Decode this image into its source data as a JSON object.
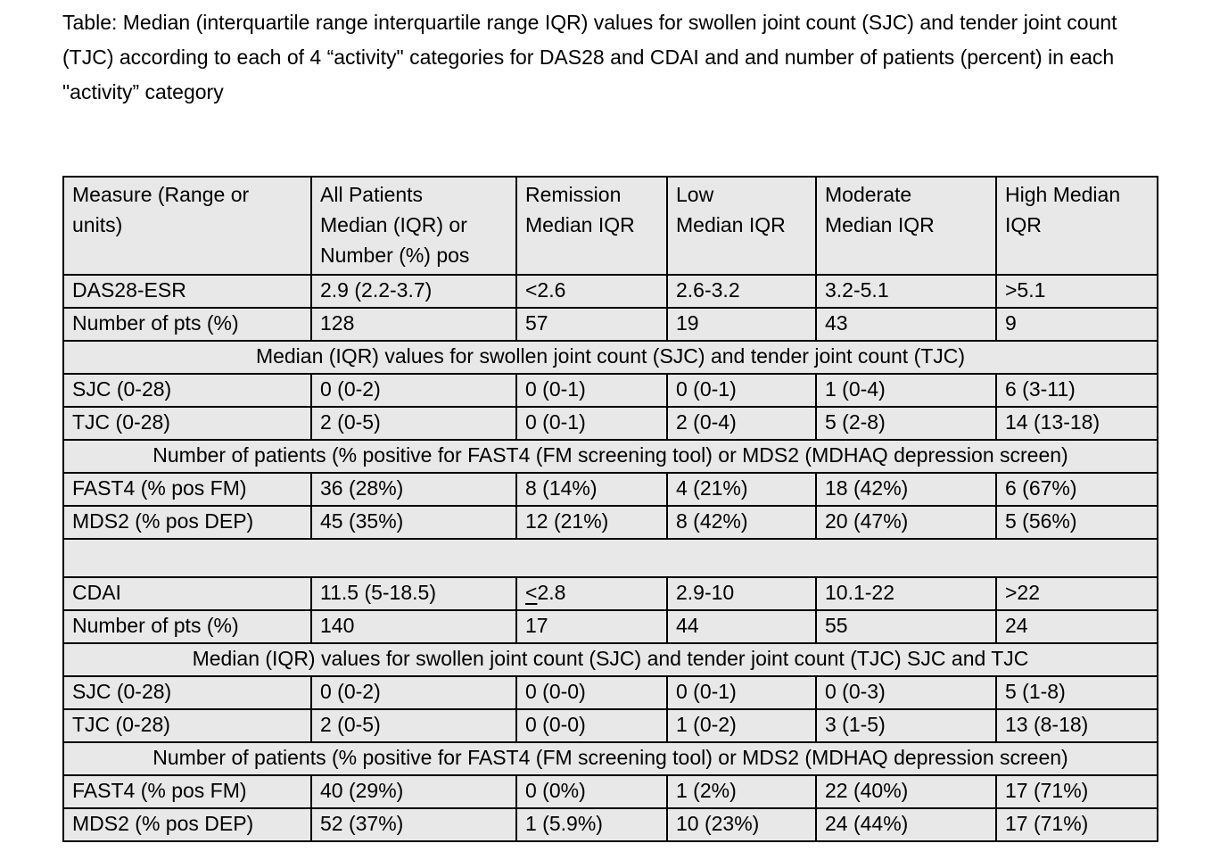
{
  "title": "Table: Median (interquartile range interquartile range IQR) values for swollen joint count (SJC) and tender joint count (TJC) according to each of 4 “activity\" categories for DAS28 and CDAI and and number of patients (percent) in each \"activity” category",
  "colors": {
    "cell_bg": "#e8e8e8",
    "border": "#000000",
    "text": "#000000",
    "page_bg": "#ffffff"
  },
  "table": {
    "columns": [
      "Measure (Range or\nunits)",
      "All Patients\nMedian (IQR) or\nNumber (%) pos",
      "Remission\nMedian IQR",
      "Low\nMedian IQR",
      "Moderate\nMedian IQR",
      "High Median\nIQR"
    ],
    "rows": [
      {
        "type": "data",
        "cells": [
          "DAS28-ESR",
          "2.9 (2.2-3.7)",
          "<2.6",
          "2.6-3.2",
          "3.2-5.1",
          ">5.1"
        ]
      },
      {
        "type": "data",
        "cells": [
          "Number of pts (%)",
          "128",
          "57",
          "19",
          "43",
          "9"
        ]
      },
      {
        "type": "section",
        "text": "Median (IQR) values for swollen joint count (SJC) and tender joint count (TJC)"
      },
      {
        "type": "data",
        "cells": [
          "SJC (0-28)",
          "0 (0-2)",
          "0 (0-1)",
          "0 (0-1)",
          "1 (0-4)",
          "6 (3-11)"
        ]
      },
      {
        "type": "data",
        "cells": [
          "TJC (0-28)",
          "2 (0-5)",
          "0 (0-1)",
          "2 (0-4)",
          "5 (2-8)",
          "14 (13-18)"
        ]
      },
      {
        "type": "section",
        "text": "Number of patients (% positive for FAST4 (FM screening tool) or MDS2 (MDHAQ depression screen)"
      },
      {
        "type": "data",
        "cells": [
          "FAST4 (% pos FM)",
          "36 (28%)",
          "8 (14%)",
          "4 (21%)",
          "18 (42%)",
          "6 (67%)"
        ]
      },
      {
        "type": "data",
        "cells": [
          "MDS2 (% pos DEP)",
          "45 (35%)",
          "12 (21%)",
          "8 (42%)",
          "20 (47%)",
          "5 (56%)"
        ]
      },
      {
        "type": "blank"
      },
      {
        "type": "data",
        "cells": [
          "CDAI",
          "11.5 (5-18.5)",
          {
            "text": "<2.8",
            "underline_chars": 1
          },
          "2.9-10",
          "10.1-22",
          ">22"
        ]
      },
      {
        "type": "data",
        "cells": [
          "Number of pts (%)",
          "140",
          "17",
          "44",
          "55",
          "24"
        ]
      },
      {
        "type": "section",
        "text": "Median (IQR) values for swollen joint count (SJC) and tender joint count (TJC) SJC and TJC"
      },
      {
        "type": "data",
        "cells": [
          "SJC (0-28)",
          "0 (0-2)",
          "0 (0-0)",
          "0 (0-1)",
          "0 (0-3)",
          "5 (1-8)"
        ]
      },
      {
        "type": "data",
        "cells": [
          "TJC (0-28)",
          "2 (0-5)",
          "0 (0-0)",
          "1 (0-2)",
          "3 (1-5)",
          "13 (8-18)"
        ]
      },
      {
        "type": "section",
        "text": "Number of patients (% positive for FAST4 (FM screening tool) or MDS2 (MDHAQ depression screen)"
      },
      {
        "type": "data",
        "cells": [
          "FAST4 (% pos FM)",
          "40 (29%)",
          "0 (0%)",
          "1 (2%)",
          "22 (40%)",
          "17 (71%)"
        ]
      },
      {
        "type": "data",
        "cells": [
          "MDS2 (% pos DEP)",
          "52 (37%)",
          "1 (5.9%)",
          "10 (23%)",
          "24 (44%)",
          "17 (71%)"
        ]
      }
    ]
  }
}
